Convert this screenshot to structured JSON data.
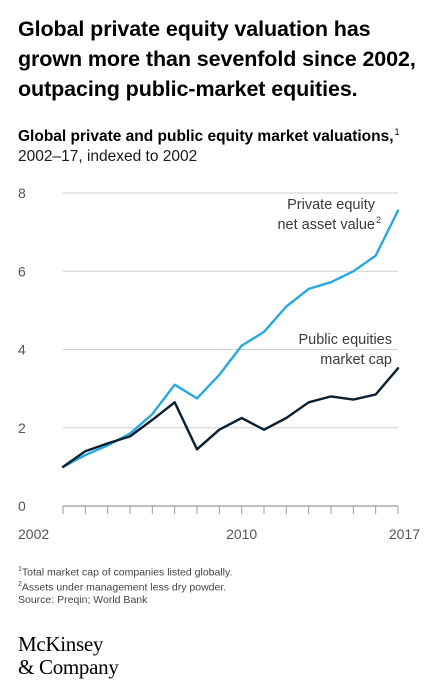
{
  "headline": "Global private equity valuation has grown more than sevenfold since 2002, outpacing public-market equities.",
  "chart_data": {
    "type": "line",
    "title": "Global private and public equity market valuations,",
    "title_footnote": "1",
    "subtitle": "2002–17, indexed to 2002",
    "xlabel": "",
    "ylabel": "",
    "x": [
      2002,
      2003,
      2004,
      2005,
      2006,
      2007,
      2008,
      2009,
      2010,
      2011,
      2012,
      2013,
      2014,
      2015,
      2016,
      2017
    ],
    "xlim": [
      2002,
      2017
    ],
    "ylim": [
      0,
      8
    ],
    "x_ticks": [
      2002,
      2010,
      2017
    ],
    "y_ticks": [
      0,
      2,
      4,
      6,
      8
    ],
    "grid": "horizontal",
    "series": [
      {
        "name": "Private equity net asset value",
        "name_footnote": "2",
        "label_lines": [
          "Private equity",
          "net asset value"
        ],
        "color": "#29a8e0",
        "values": [
          1.0,
          1.3,
          1.55,
          1.85,
          2.35,
          3.1,
          2.75,
          3.35,
          4.1,
          4.45,
          5.1,
          5.55,
          5.72,
          6.0,
          6.4,
          7.55
        ]
      },
      {
        "name": "Public equities market cap",
        "label_lines": [
          "Public equities",
          "market cap"
        ],
        "color": "#0a1f30",
        "values": [
          1.0,
          1.4,
          1.6,
          1.78,
          2.2,
          2.65,
          1.45,
          1.95,
          2.25,
          1.95,
          2.25,
          2.65,
          2.8,
          2.72,
          2.85,
          3.52
        ]
      }
    ]
  },
  "notes": {
    "note1_marker": "1",
    "note1": "Total market cap of companies listed globally.",
    "note2_marker": "2",
    "note2": "Assets under management less dry powder.",
    "source": "Source: Preqin; World Bank"
  },
  "logo": {
    "line1": "McKinsey",
    "line2": "& Company"
  }
}
